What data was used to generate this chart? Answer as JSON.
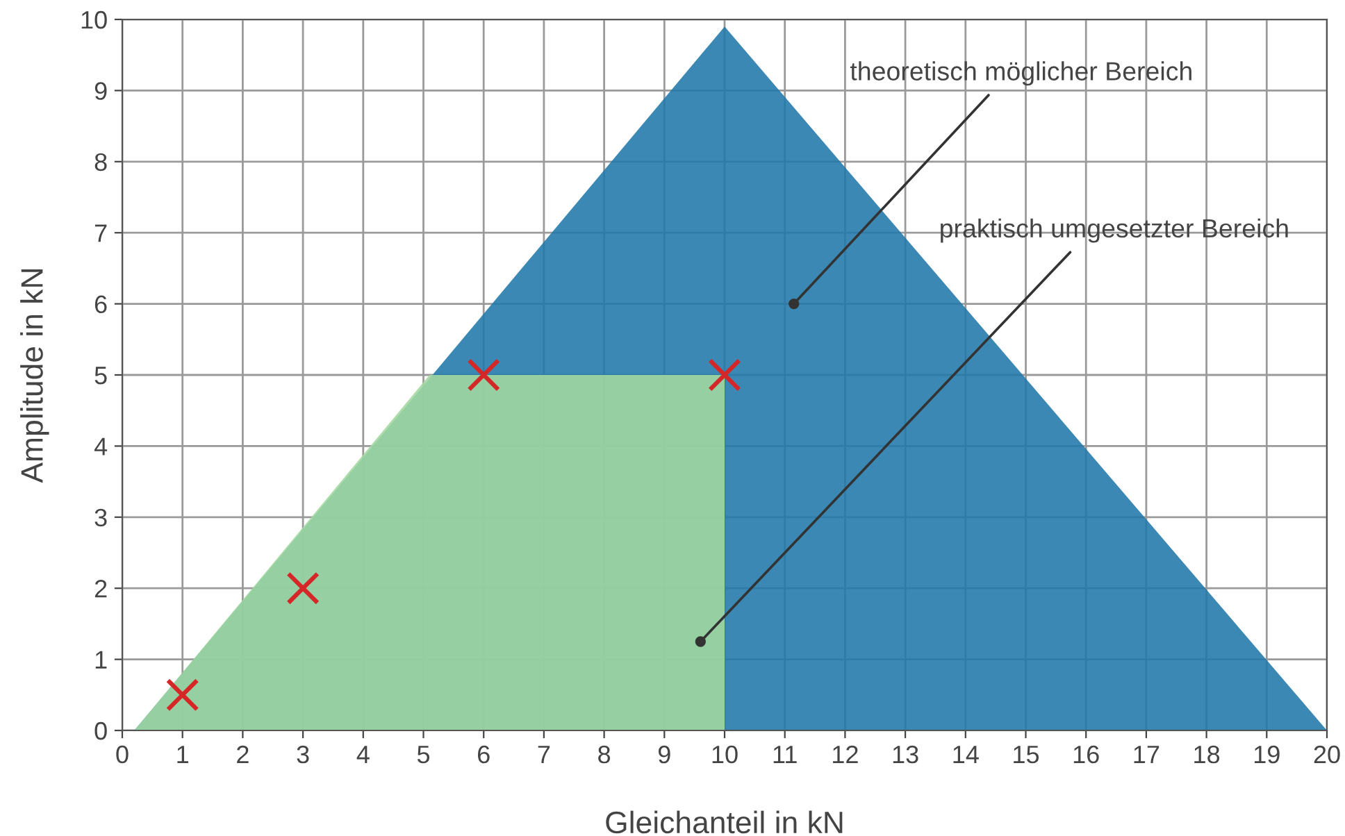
{
  "chart_data": {
    "type": "area",
    "xlabel": "Gleichanteil in kN",
    "ylabel": "Amplitude in kN",
    "series": [
      {
        "color": "#1f78a8",
        "x": [
          0.2,
          10,
          20
        ],
        "values": [
          0,
          9.9,
          0
        ]
      },
      {
        "color": "#a3d89f",
        "x": [
          0.2,
          5.1,
          10,
          10
        ],
        "values": [
          0,
          5,
          5,
          0
        ]
      },
      {
        "type": "scatter",
        "color": "#d62728",
        "marker": "cross",
        "x": [
          1,
          3,
          6,
          10
        ],
        "values": [
          0.5,
          2,
          5,
          5
        ]
      }
    ],
    "annotations": [
      {
        "text": "theoretisch möglicher Bereich",
        "x": 11.15,
        "y": 6
      },
      {
        "text": "praktisch umgesetzter Bereich",
        "x": 9.6,
        "y": 1.25
      }
    ],
    "xlim": [
      0,
      20
    ],
    "ylim": [
      0,
      10
    ],
    "xticks": [
      0,
      1,
      2,
      3,
      4,
      5,
      6,
      7,
      8,
      9,
      10,
      11,
      12,
      13,
      14,
      15,
      16,
      17,
      18,
      19,
      20
    ],
    "yticks": [
      0,
      1,
      2,
      3,
      4,
      5,
      6,
      7,
      8,
      9,
      10
    ],
    "grid": true
  }
}
